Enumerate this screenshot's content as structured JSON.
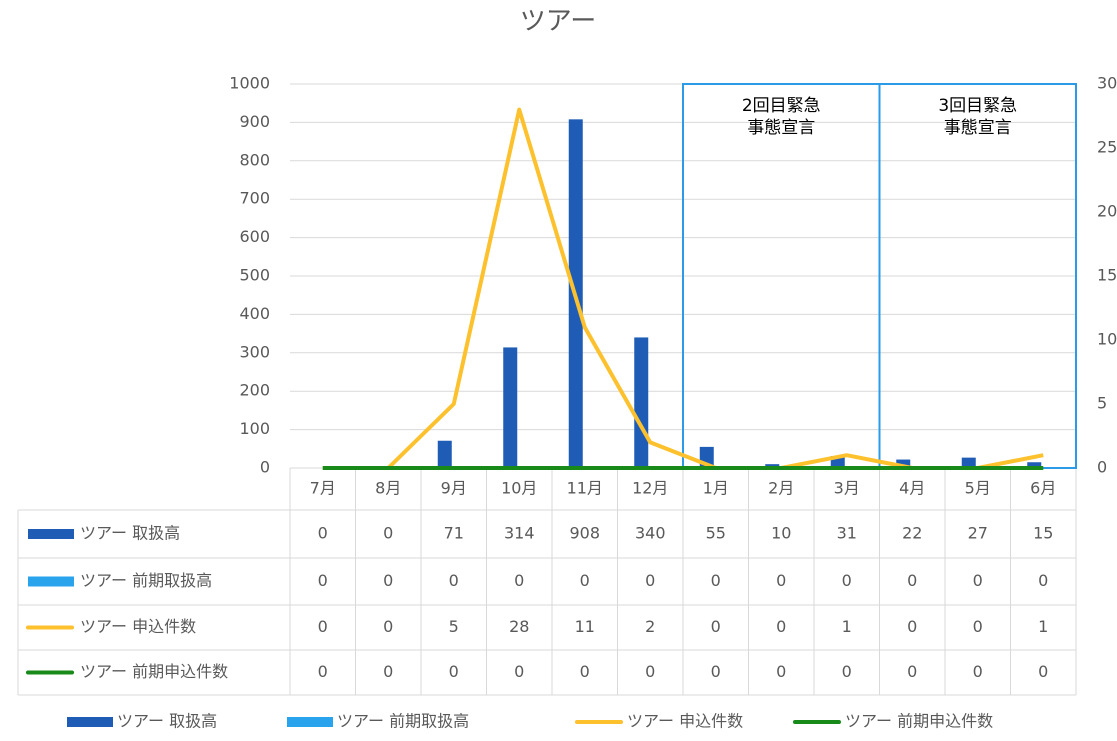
{
  "chart_data": {
    "type": "bar-line",
    "title": "ツアー",
    "categories": [
      "7月",
      "8月",
      "9月",
      "10月",
      "11月",
      "12月",
      "1月",
      "2月",
      "3月",
      "4月",
      "5月",
      "6月"
    ],
    "series": [
      {
        "name": "ツアー 取扱高",
        "type": "bar",
        "color": "#1f5cb5",
        "values": [
          0,
          0,
          71,
          314,
          908,
          340,
          55,
          10,
          31,
          22,
          27,
          15
        ]
      },
      {
        "name": "ツアー 前期取扱高",
        "type": "bar",
        "color": "#29a3ec",
        "values": [
          0,
          0,
          0,
          0,
          0,
          0,
          0,
          0,
          0,
          0,
          0,
          0
        ]
      },
      {
        "name": "ツアー 申込件数",
        "type": "line",
        "axis": "y2",
        "color": "#fcc12d",
        "values": [
          0,
          0,
          5,
          28,
          11,
          2,
          0,
          0,
          1,
          0,
          0,
          1
        ]
      },
      {
        "name": "ツアー 前期申込件数",
        "type": "line",
        "axis": "y2",
        "color": "#188a1a",
        "values": [
          0,
          0,
          0,
          0,
          0,
          0,
          0,
          0,
          0,
          0,
          0,
          0
        ]
      }
    ],
    "ylim": [
      0,
      1000
    ],
    "yticks": [
      0,
      100,
      200,
      300,
      400,
      500,
      600,
      700,
      800,
      900,
      1000
    ],
    "y2lim": [
      0,
      30
    ],
    "y2ticks": [
      0,
      5,
      10,
      15,
      20,
      25,
      30
    ],
    "grid": true,
    "legend": "bottom",
    "annotations": [
      {
        "lines": [
          "2回目緊急",
          "事態宣言"
        ],
        "color": "#2b9be8"
      },
      {
        "lines": [
          "3回目緊急",
          "事態宣言"
        ],
        "color": "#2b9be8"
      }
    ]
  }
}
